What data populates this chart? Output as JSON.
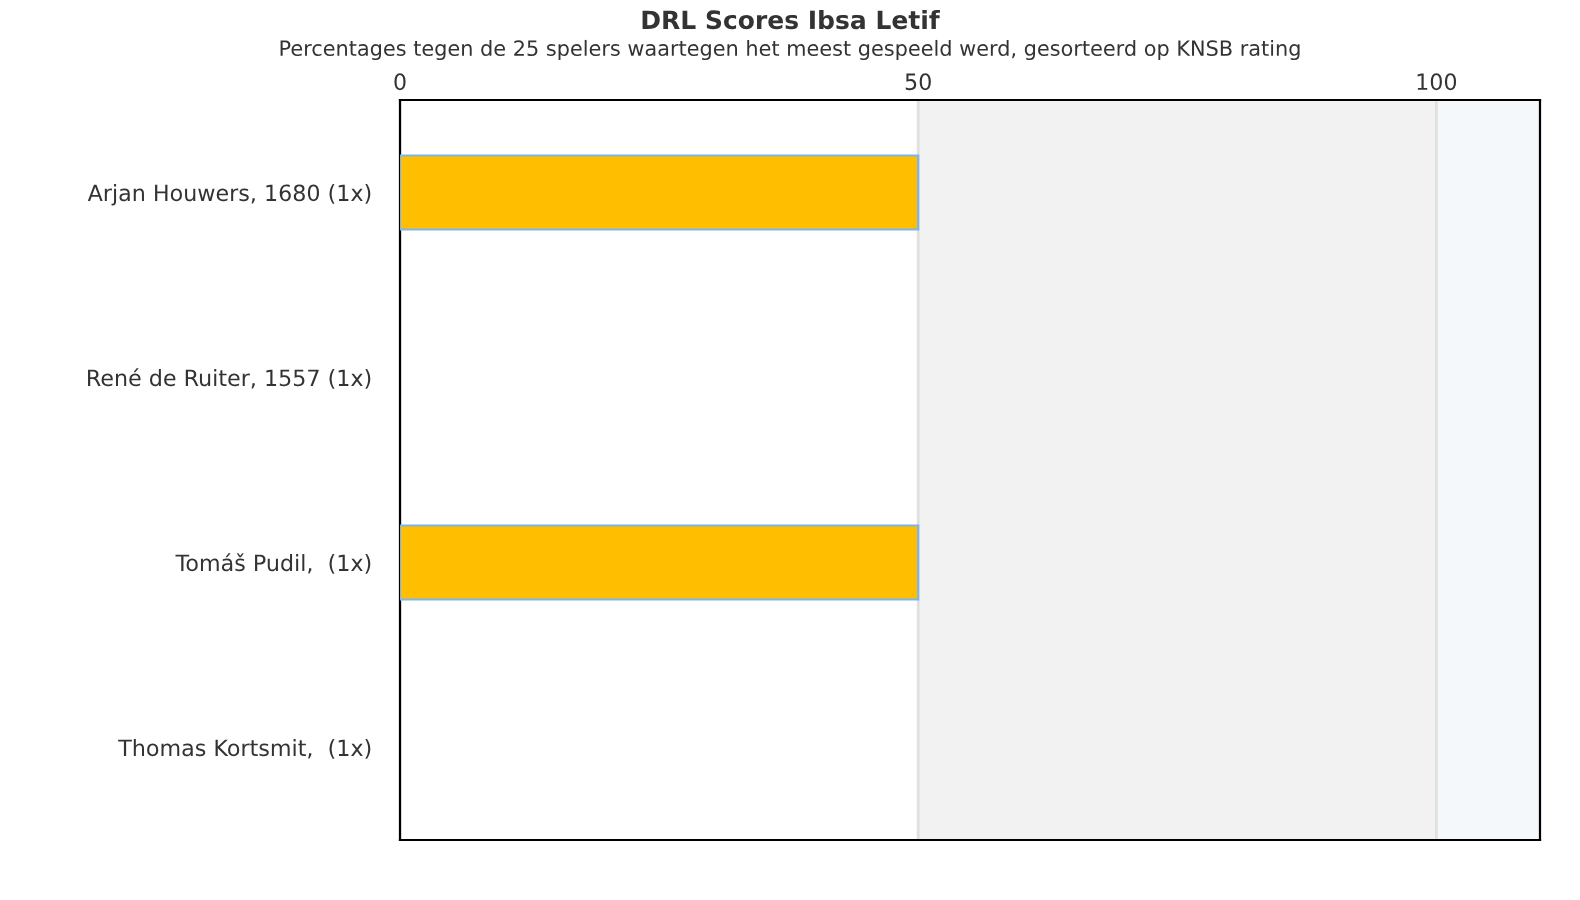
{
  "chart_data": {
    "type": "bar",
    "orientation": "horizontal",
    "title": "DRL Scores Ibsa Letif",
    "subtitle": "Percentages tegen de 25 spelers waartegen het meest gespeeld werd, gesorteerd op KNSB rating",
    "categories": [
      "Arjan Houwers, 1680 (1x)",
      "René de Ruiter, 1557 (1x)",
      "Tomáš Pudil,  (1x)",
      "Thomas Kortsmit,  (1x)"
    ],
    "values": [
      50,
      0,
      50,
      0
    ],
    "color": "#ffbf00",
    "xlim": [
      0,
      110
    ],
    "xticks": [
      0,
      50,
      100
    ],
    "grid": "x",
    "bands": [
      {
        "axis": "x",
        "from": 50,
        "to": 100,
        "color": "#f2f2f2"
      },
      {
        "axis": "x",
        "from": 100,
        "to": 110,
        "color": "#f4f8fb"
      }
    ]
  }
}
